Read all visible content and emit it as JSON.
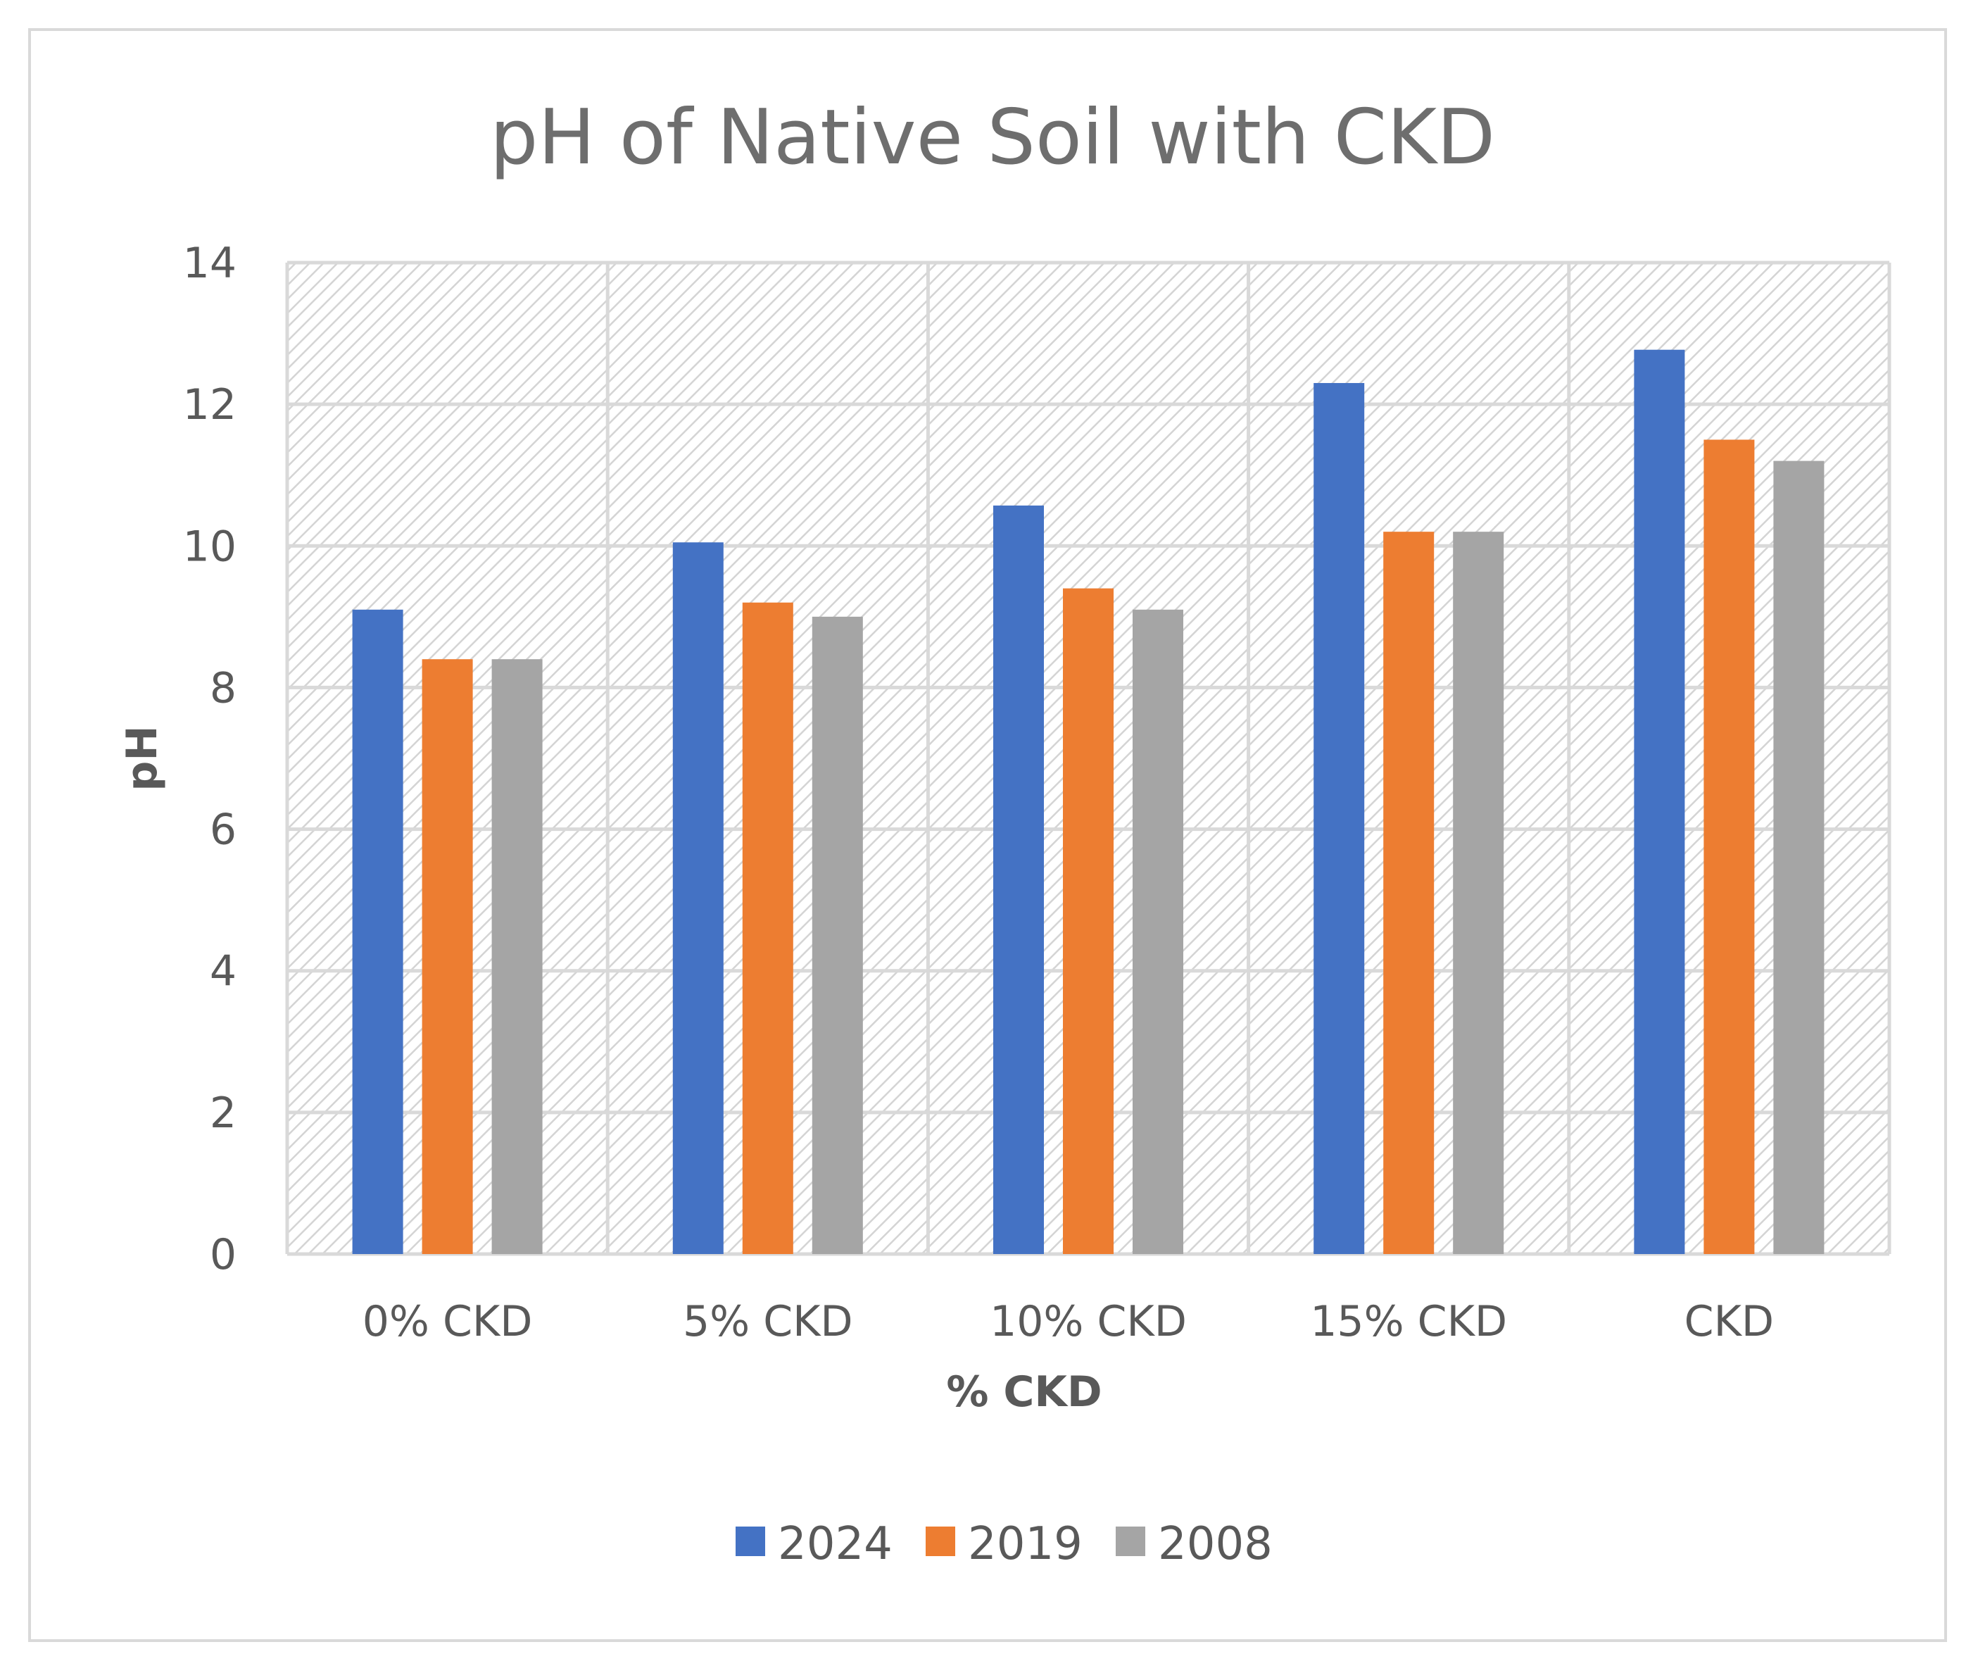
{
  "chart_data": {
    "type": "bar",
    "title": "pH of Native Soil with CKD",
    "xlabel": "% CKD",
    "ylabel": "pH",
    "categories": [
      "0% CKD",
      "5% CKD",
      "10% CKD",
      "15% CKD",
      "CKD"
    ],
    "series": [
      {
        "name": "2024",
        "color": "#4472c4",
        "values": [
          9.1,
          10.05,
          10.57,
          12.3,
          12.77
        ]
      },
      {
        "name": "2019",
        "color": "#ed7d31",
        "values": [
          8.4,
          9.2,
          9.4,
          10.2,
          11.5
        ]
      },
      {
        "name": "2008",
        "color": "#a5a5a5",
        "values": [
          8.4,
          9.0,
          9.1,
          10.2,
          11.2
        ]
      }
    ],
    "ylim": [
      0,
      14
    ],
    "yticks": [
      0,
      2,
      4,
      6,
      8,
      10,
      12,
      14
    ],
    "grid": true,
    "legend": "bottom"
  }
}
